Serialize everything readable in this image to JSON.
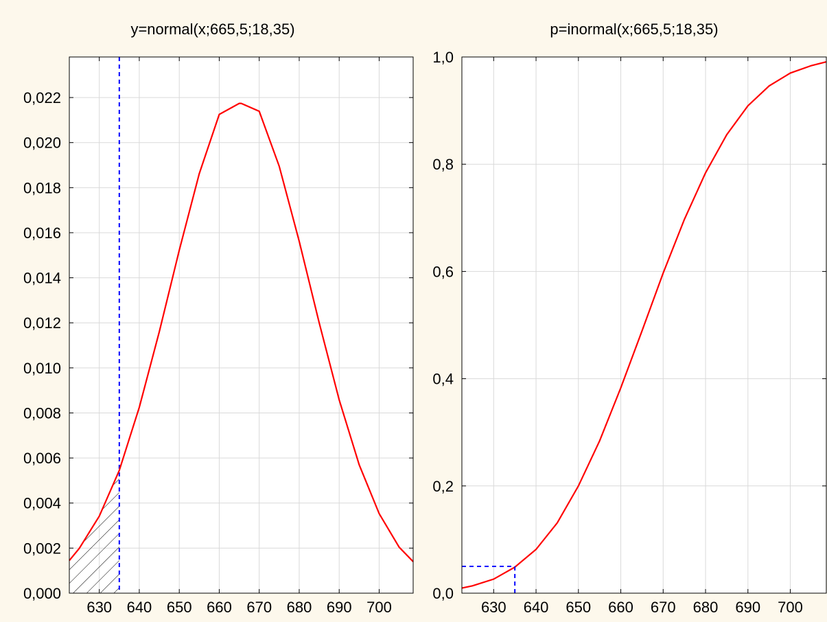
{
  "chart_data": [
    {
      "type": "area",
      "title": "y=normal(x;665,5;18,35)",
      "xlabel": "",
      "ylabel": "",
      "xlim": [
        622.5,
        708.5
      ],
      "ylim": [
        0,
        0.0238
      ],
      "x_ticks": [
        630,
        640,
        650,
        660,
        670,
        680,
        690,
        700
      ],
      "x_tick_labels": [
        "630",
        "640",
        "650",
        "660",
        "670",
        "680",
        "690",
        "700"
      ],
      "y_ticks": [
        0,
        0.002,
        0.004,
        0.006,
        0.008,
        0.01,
        0.012,
        0.014,
        0.016,
        0.018,
        0.02,
        0.022
      ],
      "y_tick_labels": [
        "0,000",
        "0,002",
        "0,004",
        "0,006",
        "0,008",
        "0,010",
        "0,012",
        "0,014",
        "0,016",
        "0,018",
        "0,020",
        "0,022"
      ],
      "grid": true,
      "series": [
        {
          "kind": "line",
          "color": "#ff0000",
          "x": [
            622.5,
            625,
            630,
            635,
            640,
            645,
            650,
            655,
            660,
            665,
            665.5,
            670,
            675,
            680,
            685,
            690,
            695,
            700,
            705,
            708.5
          ],
          "y": [
            0.00145,
            0.00199,
            0.00342,
            0.00545,
            0.00825,
            0.0116,
            0.01522,
            0.01862,
            0.02125,
            0.02174,
            0.02174,
            0.02139,
            0.01895,
            0.01562,
            0.012,
            0.00858,
            0.0057,
            0.00353,
            0.00204,
            0.0014
          ]
        }
      ],
      "marker_line": {
        "x": 635,
        "color": "#0000ff",
        "style": "dashed"
      },
      "shaded_region": {
        "x_from": 622.5,
        "x_to": 635,
        "pattern": "hatch"
      }
    },
    {
      "type": "line",
      "title": "p=inormal(x;665,5;18,35)",
      "xlabel": "",
      "ylabel": "",
      "xlim": [
        622.5,
        708.5
      ],
      "ylim": [
        0,
        1
      ],
      "x_ticks": [
        630,
        640,
        650,
        660,
        670,
        680,
        690,
        700
      ],
      "x_tick_labels": [
        "630",
        "640",
        "650",
        "660",
        "670",
        "680",
        "690",
        "700"
      ],
      "y_ticks": [
        0,
        0.2,
        0.4,
        0.6,
        0.8,
        1.0
      ],
      "y_tick_labels": [
        "0,0",
        "0,2",
        "0,4",
        "0,6",
        "0,8",
        "1,0"
      ],
      "grid": true,
      "series": [
        {
          "kind": "line",
          "color": "#ff0000",
          "x": [
            622.5,
            625,
            630,
            635,
            640,
            645,
            650,
            655,
            660,
            665,
            670,
            675,
            680,
            685,
            690,
            695,
            700,
            705,
            708.5
          ],
          "y": [
            0.0095,
            0.0137,
            0.0262,
            0.0486,
            0.0816,
            0.131,
            0.2,
            0.284,
            0.383,
            0.489,
            0.597,
            0.697,
            0.784,
            0.855,
            0.909,
            0.946,
            0.97,
            0.984,
            0.991
          ]
        }
      ],
      "marker_lines": [
        {
          "from": [
            622.5,
            0.05
          ],
          "to": [
            635,
            0.05
          ],
          "color": "#0000ff",
          "style": "dashed"
        },
        {
          "from": [
            635,
            0
          ],
          "to": [
            635,
            0.05
          ],
          "color": "#0000ff",
          "style": "dashed"
        }
      ]
    }
  ]
}
